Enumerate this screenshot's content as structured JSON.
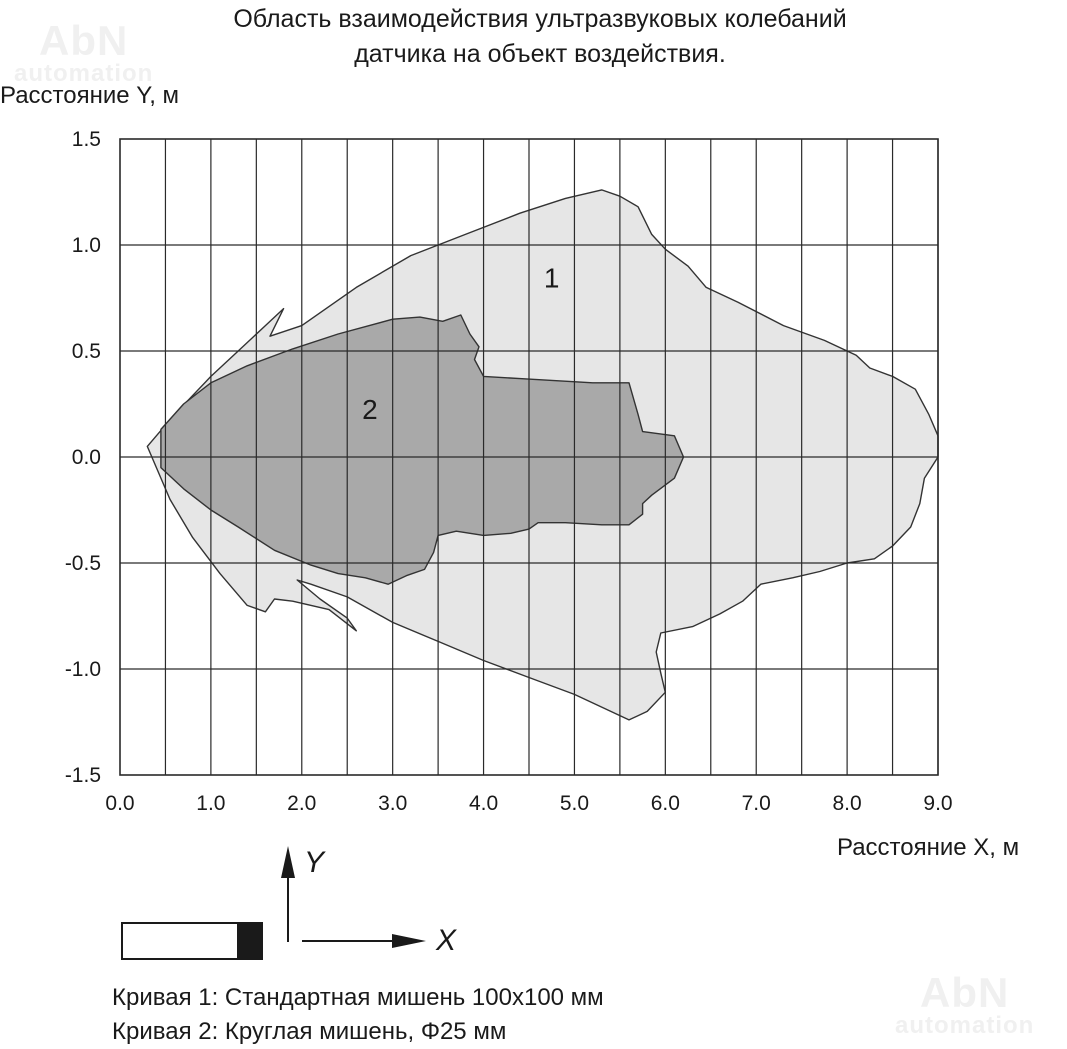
{
  "title_line1": "Область взаимодействия ультразвуковых колебаний",
  "title_line2": "датчика на объект воздействия.",
  "watermark_top": {
    "text1": "AbN",
    "text2": "automation"
  },
  "watermark_bottom": {
    "text1": "AbN",
    "text2": "automation"
  },
  "diagram": {
    "y_axis_letter": "Y",
    "x_axis_letter": "X"
  },
  "legend": {
    "curve1": "Кривая 1: Стандартная мишень 100x100 мм",
    "curve2": "Кривая 2: Круглая мишень, Φ25 мм"
  },
  "colors": {
    "curve1_fill": "#e6e6e6",
    "curve2_fill": "#a9a9a9",
    "grid": "#2a2a2a"
  },
  "chart_data": {
    "type": "area",
    "ylabel": "Расстояние Y, м",
    "xlabel": "Расстояние X, м",
    "xlim": [
      0,
      9
    ],
    "ylim": [
      -1.5,
      1.5
    ],
    "x_ticks": [
      0.0,
      1.0,
      2.0,
      3.0,
      4.0,
      5.0,
      6.0,
      7.0,
      8.0,
      9.0
    ],
    "x_tick_labels": [
      "0.0",
      "1.0",
      "2.0",
      "3.0",
      "4.0",
      "5.0",
      "6.0",
      "7.0",
      "8.0",
      "9.0"
    ],
    "y_ticks": [
      1.5,
      1.0,
      0.5,
      0.0,
      -0.5,
      -1.0,
      -1.5
    ],
    "y_tick_labels": [
      "1.5",
      "1.0",
      "0.5",
      "0.0",
      "-0.5",
      "-1.0",
      "-1.5"
    ],
    "x_gridlines": [
      0.5,
      1.0,
      1.5,
      2.0,
      2.5,
      3.0,
      3.5,
      4.0,
      4.5,
      5.0,
      5.5,
      6.0,
      6.5,
      7.0,
      7.5,
      8.0,
      8.5,
      9.0
    ],
    "y_gridlines": [
      1.0,
      0.5,
      0.0,
      -0.5,
      -1.0
    ],
    "grid": true,
    "series": [
      {
        "label": "1",
        "label_pos": [
          4.75,
          0.8
        ],
        "points": [
          [
            0.3,
            0.05
          ],
          [
            0.6,
            0.2
          ],
          [
            1.0,
            0.38
          ],
          [
            1.3,
            0.5
          ],
          [
            1.6,
            0.62
          ],
          [
            1.8,
            0.7
          ],
          [
            1.65,
            0.57
          ],
          [
            2.0,
            0.62
          ],
          [
            2.6,
            0.8
          ],
          [
            3.2,
            0.95
          ],
          [
            3.8,
            1.05
          ],
          [
            4.4,
            1.15
          ],
          [
            4.9,
            1.22
          ],
          [
            5.3,
            1.26
          ],
          [
            5.5,
            1.23
          ],
          [
            5.7,
            1.18
          ],
          [
            5.85,
            1.05
          ],
          [
            6.0,
            0.98
          ],
          [
            6.25,
            0.9
          ],
          [
            6.45,
            0.8
          ],
          [
            6.8,
            0.73
          ],
          [
            7.3,
            0.62
          ],
          [
            7.75,
            0.55
          ],
          [
            8.1,
            0.48
          ],
          [
            8.25,
            0.42
          ],
          [
            8.5,
            0.38
          ],
          [
            8.75,
            0.32
          ],
          [
            8.9,
            0.2
          ],
          [
            9.0,
            0.1
          ],
          [
            9.0,
            0.0
          ],
          [
            8.85,
            -0.1
          ],
          [
            8.8,
            -0.22
          ],
          [
            8.7,
            -0.33
          ],
          [
            8.5,
            -0.42
          ],
          [
            8.3,
            -0.48
          ],
          [
            8.0,
            -0.5
          ],
          [
            7.7,
            -0.54
          ],
          [
            7.4,
            -0.57
          ],
          [
            7.05,
            -0.6
          ],
          [
            6.85,
            -0.68
          ],
          [
            6.6,
            -0.74
          ],
          [
            6.3,
            -0.8
          ],
          [
            5.95,
            -0.83
          ],
          [
            5.9,
            -0.92
          ],
          [
            5.95,
            -1.02
          ],
          [
            6.0,
            -1.11
          ],
          [
            5.8,
            -1.2
          ],
          [
            5.6,
            -1.24
          ],
          [
            5.4,
            -1.2
          ],
          [
            5.0,
            -1.12
          ],
          [
            4.5,
            -1.04
          ],
          [
            4.0,
            -0.96
          ],
          [
            3.5,
            -0.87
          ],
          [
            3.0,
            -0.78
          ],
          [
            2.5,
            -0.66
          ],
          [
            2.1,
            -0.6
          ],
          [
            1.95,
            -0.58
          ],
          [
            2.2,
            -0.67
          ],
          [
            2.5,
            -0.76
          ],
          [
            2.6,
            -0.82
          ],
          [
            2.3,
            -0.72
          ],
          [
            1.9,
            -0.68
          ],
          [
            1.7,
            -0.67
          ],
          [
            1.6,
            -0.73
          ],
          [
            1.4,
            -0.7
          ],
          [
            1.1,
            -0.55
          ],
          [
            0.8,
            -0.38
          ],
          [
            0.55,
            -0.2
          ],
          [
            0.4,
            -0.05
          ],
          [
            0.3,
            0.05
          ]
        ]
      },
      {
        "label": "2",
        "label_pos": [
          2.75,
          0.18
        ],
        "points": [
          [
            0.45,
            0.13
          ],
          [
            0.7,
            0.25
          ],
          [
            1.0,
            0.35
          ],
          [
            1.4,
            0.43
          ],
          [
            1.9,
            0.51
          ],
          [
            2.4,
            0.58
          ],
          [
            3.0,
            0.65
          ],
          [
            3.3,
            0.66
          ],
          [
            3.55,
            0.64
          ],
          [
            3.75,
            0.67
          ],
          [
            3.85,
            0.58
          ],
          [
            3.95,
            0.52
          ],
          [
            3.9,
            0.46
          ],
          [
            4.0,
            0.38
          ],
          [
            4.4,
            0.37
          ],
          [
            4.8,
            0.36
          ],
          [
            5.2,
            0.35
          ],
          [
            5.6,
            0.35
          ],
          [
            5.7,
            0.2
          ],
          [
            5.75,
            0.12
          ],
          [
            6.1,
            0.1
          ],
          [
            6.2,
            0.0
          ],
          [
            6.1,
            -0.1
          ],
          [
            5.85,
            -0.18
          ],
          [
            5.75,
            -0.22
          ],
          [
            5.75,
            -0.27
          ],
          [
            5.6,
            -0.32
          ],
          [
            5.3,
            -0.32
          ],
          [
            4.9,
            -0.31
          ],
          [
            4.6,
            -0.31
          ],
          [
            4.5,
            -0.34
          ],
          [
            4.3,
            -0.36
          ],
          [
            4.0,
            -0.37
          ],
          [
            3.7,
            -0.35
          ],
          [
            3.5,
            -0.37
          ],
          [
            3.45,
            -0.45
          ],
          [
            3.35,
            -0.53
          ],
          [
            3.15,
            -0.56
          ],
          [
            2.95,
            -0.6
          ],
          [
            2.7,
            -0.57
          ],
          [
            2.4,
            -0.55
          ],
          [
            2.1,
            -0.51
          ],
          [
            1.7,
            -0.44
          ],
          [
            1.3,
            -0.33
          ],
          [
            1.0,
            -0.25
          ],
          [
            0.7,
            -0.15
          ],
          [
            0.45,
            -0.05
          ],
          [
            0.45,
            0.13
          ]
        ]
      }
    ]
  }
}
